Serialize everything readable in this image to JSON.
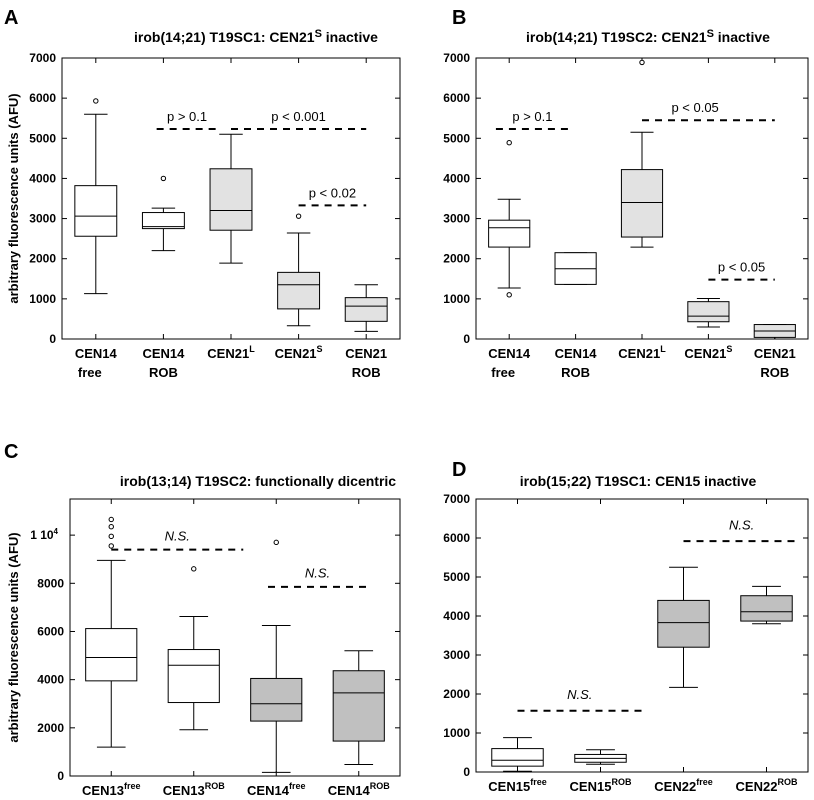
{
  "chart_data": [
    {
      "type": "box",
      "panel": "A",
      "title": "irob(14;21) T19SC1: CEN21",
      "title_sup": "S",
      "title_suffix": " inactive",
      "ylabel": "arbitrary fluorescence units (AFU)",
      "ylim": [
        0,
        7000
      ],
      "yticks": [
        0,
        1000,
        2000,
        3000,
        4000,
        5000,
        6000,
        7000
      ],
      "ytick_labels": [
        "0",
        "1000",
        "2000",
        "3000",
        "4000",
        "5000",
        "6000",
        "7000"
      ],
      "categories": [
        {
          "line1": "CEN14",
          "sup": "",
          "line2": "free"
        },
        {
          "line1": "CEN14",
          "sup": "",
          "line2": "ROB"
        },
        {
          "line1": "CEN21",
          "sup": "L",
          "line2": ""
        },
        {
          "line1": "CEN21",
          "sup": "S",
          "line2": ""
        },
        {
          "line1": "CEN21",
          "sup": "",
          "line2": "ROB"
        }
      ],
      "boxes": [
        {
          "whislo": 1130,
          "q1": 2560,
          "med": 3060,
          "q3": 3820,
          "whishi": 5600,
          "fliers": [
            5930
          ],
          "color": "#ffffff"
        },
        {
          "whislo": 2200,
          "q1": 2750,
          "med": 2800,
          "q3": 3150,
          "whishi": 3260,
          "fliers": [
            4000
          ],
          "color": "#ffffff"
        },
        {
          "whislo": 1890,
          "q1": 2710,
          "med": 3200,
          "q3": 4240,
          "whishi": 5100,
          "fliers": [],
          "color": "#e2e2e2"
        },
        {
          "whislo": 330,
          "q1": 750,
          "med": 1350,
          "q3": 1660,
          "whishi": 2640,
          "fliers": [
            3060
          ],
          "color": "#e2e2e2"
        },
        {
          "whislo": 190,
          "q1": 440,
          "med": 820,
          "q3": 1030,
          "whishi": 1350,
          "fliers": [],
          "color": "#e2e2e2"
        }
      ],
      "annotations": [
        {
          "label": "p > 0.1",
          "x_from": 1.9,
          "x_to": 2.8,
          "line_y": 5230,
          "text_x": 2.35,
          "text_y": 5530
        },
        {
          "label": "p < 0.001",
          "x_from": 3.0,
          "x_to": 5.0,
          "line_y": 5230,
          "text_x": 4.0,
          "text_y": 5530
        },
        {
          "label": "p < 0.02",
          "x_from": 4.0,
          "x_to": 5.0,
          "line_y": 3330,
          "text_x": 4.5,
          "text_y": 3630
        }
      ]
    },
    {
      "type": "box",
      "panel": "B",
      "title": "irob(14;21) T19SC2: CEN21",
      "title_sup": "S",
      "title_suffix": " inactive",
      "ylabel": "",
      "ylim": [
        0,
        7000
      ],
      "yticks": [
        0,
        1000,
        2000,
        3000,
        4000,
        5000,
        6000,
        7000
      ],
      "ytick_labels": [
        "0",
        "1000",
        "2000",
        "3000",
        "4000",
        "5000",
        "6000",
        "7000"
      ],
      "categories": [
        {
          "line1": "CEN14",
          "sup": "",
          "line2": "free"
        },
        {
          "line1": "CEN14",
          "sup": "",
          "line2": "ROB"
        },
        {
          "line1": "CEN21",
          "sup": "L",
          "line2": ""
        },
        {
          "line1": "CEN21",
          "sup": "S",
          "line2": ""
        },
        {
          "line1": "CEN21",
          "sup": "",
          "line2": "ROB"
        }
      ],
      "boxes": [
        {
          "whislo": 1270,
          "q1": 2290,
          "med": 2770,
          "q3": 2960,
          "whishi": 3480,
          "fliers": [
            1100,
            4890
          ],
          "color": "#ffffff"
        },
        {
          "whislo": 1360,
          "q1": 1360,
          "med": 1750,
          "q3": 2150,
          "whishi": 2150,
          "fliers": [],
          "color": "#ffffff"
        },
        {
          "whislo": 2290,
          "q1": 2540,
          "med": 3400,
          "q3": 4220,
          "whishi": 5150,
          "fliers": [
            6890
          ],
          "color": "#e2e2e2"
        },
        {
          "whislo": 300,
          "q1": 430,
          "med": 570,
          "q3": 930,
          "whishi": 1010,
          "fliers": [],
          "color": "#e2e2e2"
        },
        {
          "whislo": 0,
          "q1": 40,
          "med": 200,
          "q3": 360,
          "whishi": 360,
          "fliers": [],
          "color": "#e2e2e2"
        }
      ],
      "annotations": [
        {
          "label": "p > 0.1",
          "x_from": 0.8,
          "x_to": 1.9,
          "line_y": 5230,
          "text_x": 1.35,
          "text_y": 5530
        },
        {
          "label": "p < 0.05",
          "x_from": 3.0,
          "x_to": 5.0,
          "line_y": 5450,
          "text_x": 3.8,
          "text_y": 5750
        },
        {
          "label": "p < 0.05",
          "x_from": 4.0,
          "x_to": 5.0,
          "line_y": 1480,
          "text_x": 4.5,
          "text_y": 1780
        }
      ]
    },
    {
      "type": "box",
      "panel": "C",
      "title": "irob(13;14) T19SC2: functionally dicentric",
      "title_sup": "",
      "title_suffix": "",
      "ylabel": "arbitrary fluorescence units (AFU)",
      "ylim": [
        0,
        11500
      ],
      "yticks": [
        0,
        2000,
        4000,
        6000,
        8000,
        10000
      ],
      "ytick_labels": [
        "0",
        "2000",
        "4000",
        "6000",
        "8000",
        "1 10"
      ],
      "ytick_sup": [
        null,
        null,
        null,
        null,
        null,
        "4"
      ],
      "categories": [
        {
          "line1": "CEN13",
          "sup": "free",
          "line2": ""
        },
        {
          "line1": "CEN13",
          "sup": "ROB",
          "line2": ""
        },
        {
          "line1": "CEN14",
          "sup": "free",
          "line2": ""
        },
        {
          "line1": "CEN14",
          "sup": "ROB",
          "line2": ""
        }
      ],
      "boxes": [
        {
          "whislo": 1200,
          "q1": 3950,
          "med": 4920,
          "q3": 6120,
          "whishi": 8950,
          "fliers": [
            9550,
            9950,
            10350,
            10650
          ],
          "color": "#ffffff"
        },
        {
          "whislo": 1920,
          "q1": 3050,
          "med": 4600,
          "q3": 5250,
          "whishi": 6620,
          "fliers": [
            8600
          ],
          "color": "#ffffff"
        },
        {
          "whislo": 150,
          "q1": 2280,
          "med": 3000,
          "q3": 4050,
          "whishi": 6250,
          "fliers": [
            9700
          ],
          "color": "#c0c0c0"
        },
        {
          "whislo": 480,
          "q1": 1450,
          "med": 3450,
          "q3": 4370,
          "whishi": 5200,
          "fliers": [],
          "color": "#c0c0c0"
        }
      ],
      "annotations": [
        {
          "label": "N.S.",
          "x_from": 1.0,
          "x_to": 2.6,
          "line_y": 9400,
          "text_x": 1.8,
          "text_y": 9950
        },
        {
          "label": "N.S.",
          "x_from": 2.9,
          "x_to": 4.1,
          "line_y": 7850,
          "text_x": 3.5,
          "text_y": 8400
        }
      ]
    },
    {
      "type": "box",
      "panel": "D",
      "title": "irob(15;22) T19SC1: CEN15 inactive",
      "title_sup": "",
      "title_suffix": "",
      "ylabel": "",
      "ylim": [
        0,
        7000
      ],
      "yticks": [
        0,
        1000,
        2000,
        3000,
        4000,
        5000,
        6000,
        7000
      ],
      "ytick_labels": [
        "0",
        "1000",
        "2000",
        "3000",
        "4000",
        "5000",
        "6000",
        "7000"
      ],
      "categories": [
        {
          "line1": "CEN15",
          "sup": "free",
          "line2": ""
        },
        {
          "line1": "CEN15",
          "sup": "ROB",
          "line2": ""
        },
        {
          "line1": "CEN22",
          "sup": "free",
          "line2": ""
        },
        {
          "line1": "CEN22",
          "sup": "ROB",
          "line2": ""
        }
      ],
      "boxes": [
        {
          "whislo": 20,
          "q1": 150,
          "med": 300,
          "q3": 600,
          "whishi": 880,
          "fliers": [],
          "color": "#ffffff"
        },
        {
          "whislo": 200,
          "q1": 250,
          "med": 350,
          "q3": 450,
          "whishi": 570,
          "fliers": [],
          "color": "#ffffff"
        },
        {
          "whislo": 2170,
          "q1": 3200,
          "med": 3830,
          "q3": 4400,
          "whishi": 5250,
          "fliers": [],
          "color": "#c0c0c0"
        },
        {
          "whislo": 3800,
          "q1": 3870,
          "med": 4110,
          "q3": 4520,
          "whishi": 4760,
          "fliers": [],
          "color": "#c0c0c0"
        }
      ],
      "annotations": [
        {
          "label": "N.S.",
          "x_from": 1.0,
          "x_to": 2.5,
          "line_y": 1570,
          "text_x": 1.75,
          "text_y": 1980
        },
        {
          "label": "N.S.",
          "x_from": 3.0,
          "x_to": 4.4,
          "line_y": 5920,
          "text_x": 3.7,
          "text_y": 6320
        }
      ]
    }
  ]
}
